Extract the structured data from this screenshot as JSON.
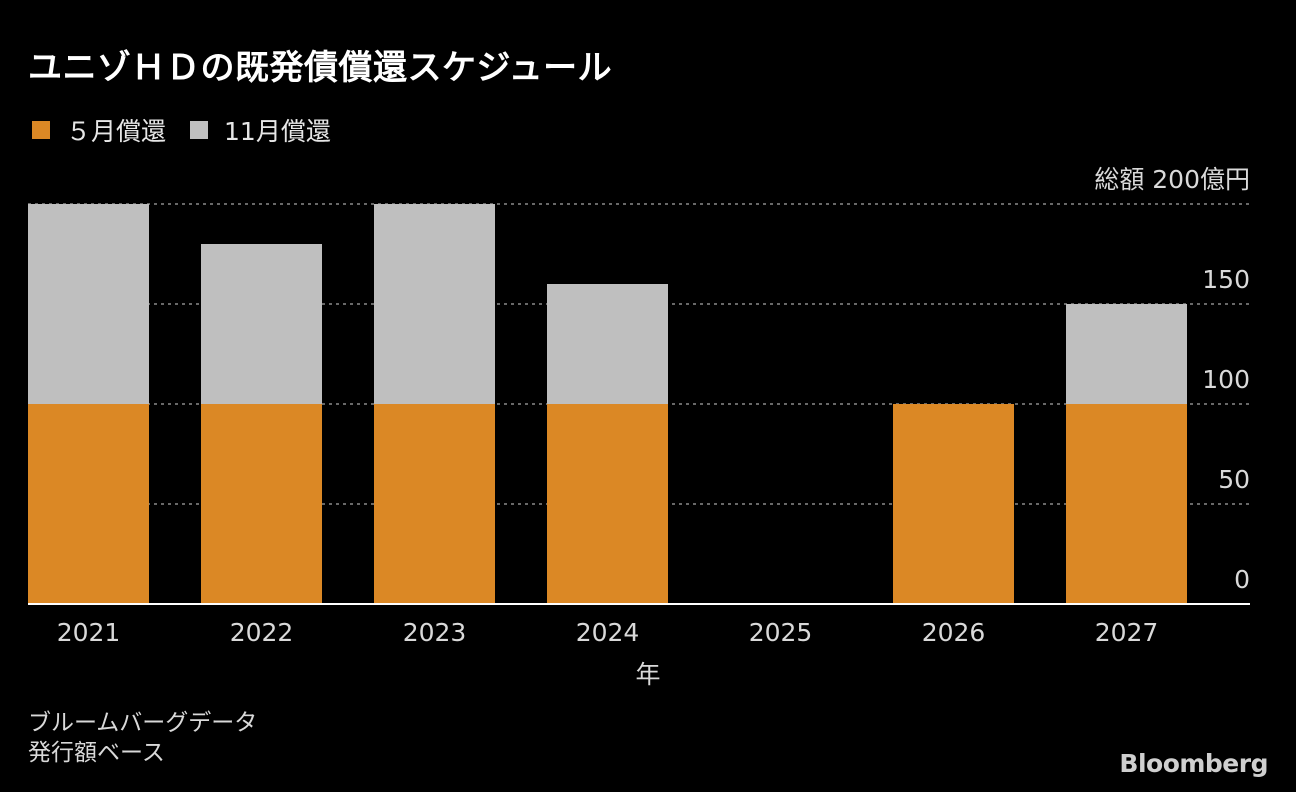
{
  "title": "ユニゾＨＤの既発債償還スケジュール",
  "legend": [
    {
      "label": "５月償還",
      "color": "#db8825"
    },
    {
      "label": "11月償還",
      "color": "#bfbfbf"
    }
  ],
  "source_lines": [
    "ブルームバーグデータ",
    "発行額ベース"
  ],
  "brand": "Bloomberg",
  "colors": {
    "background": "#000000",
    "grid": "#8a8a8a",
    "axis": "#ffffff",
    "tick_text": "#d9d9d9"
  },
  "chart_data": {
    "type": "bar",
    "stacked": true,
    "categories": [
      "2021",
      "2022",
      "2023",
      "2024",
      "2025",
      "2026",
      "2027"
    ],
    "series": [
      {
        "name": "５月償還",
        "values": [
          100,
          100,
          100,
          100,
          0,
          100,
          100
        ]
      },
      {
        "name": "11月償還",
        "values": [
          100,
          80,
          100,
          60,
          0,
          0,
          50
        ]
      }
    ],
    "xlabel": "年",
    "ylabel": "総額",
    "ylim": [
      0,
      200
    ],
    "yticks": [
      0,
      50,
      100,
      150,
      200
    ],
    "ytick_labels": [
      "0",
      "50",
      "100",
      "150",
      "総額 200億円"
    ],
    "y_axis_side": "right",
    "grid": true,
    "grid_style": "dotted",
    "legend_position": "top-left"
  }
}
